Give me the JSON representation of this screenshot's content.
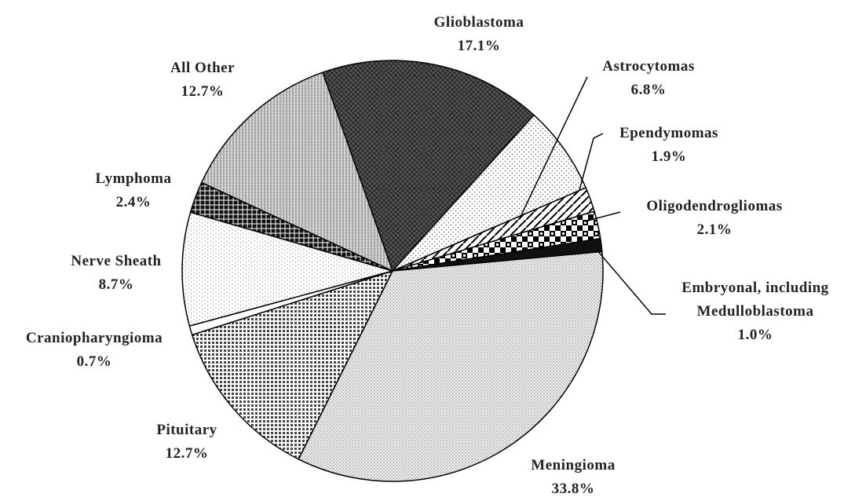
{
  "chart_data": {
    "type": "pie",
    "categories": [
      "Glioblastoma",
      "Astrocytomas",
      "Ependymomas",
      "Oligodendrogliomas",
      "Embryonal, including Medulloblastoma",
      "Meningioma",
      "Pituitary",
      "Craniopharyngioma",
      "Nerve Sheath",
      "Lymphoma",
      "All Other"
    ],
    "values": [
      17.1,
      6.8,
      1.9,
      2.1,
      1.0,
      33.8,
      12.7,
      0.7,
      8.7,
      2.4,
      12.7
    ],
    "value_labels": [
      "17.1%",
      "6.8%",
      "1.9%",
      "2.1%",
      "1.0%",
      "33.8%",
      "12.7%",
      "0.7%",
      "8.7%",
      "2.4%",
      "12.7%"
    ]
  }
}
